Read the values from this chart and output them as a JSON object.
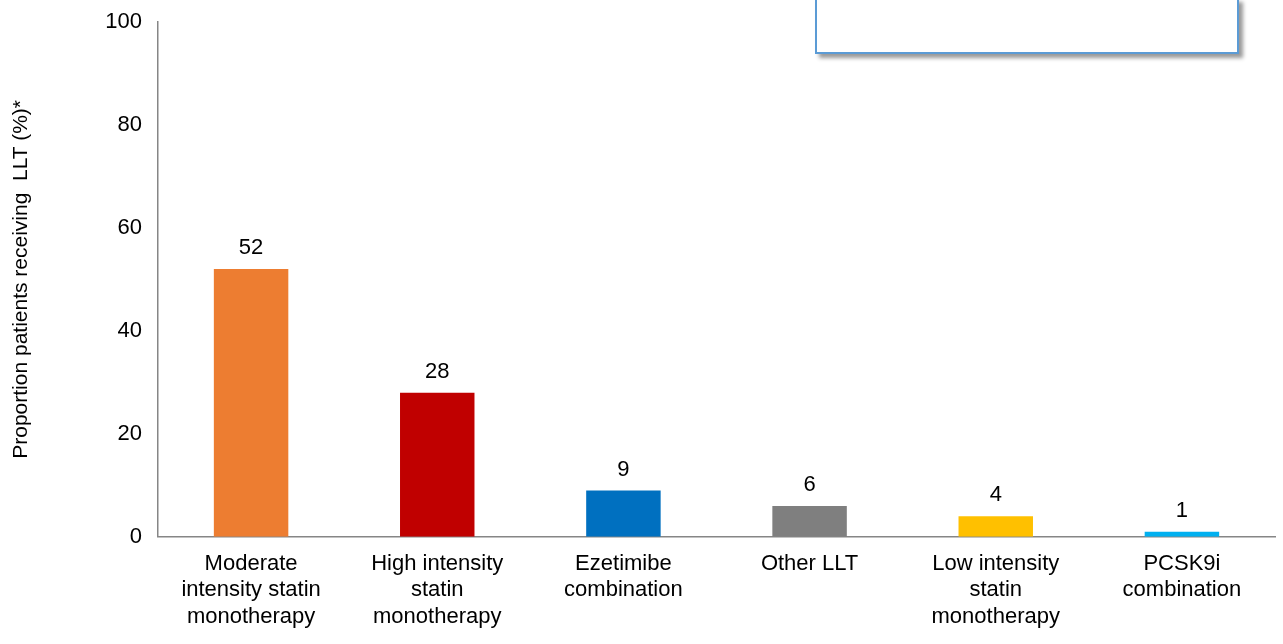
{
  "chart_data": {
    "type": "bar",
    "ylabel": "Proportion patients receiving  LLT (%)*",
    "categories": [
      "Moderate intensity statin monotherapy",
      "High intensity statin monotherapy",
      "Ezetimibe combination",
      "Other LLT",
      "Low intensity statin monotherapy",
      "PCSK9i combination"
    ],
    "values": [
      52,
      28,
      9,
      6,
      4,
      1
    ],
    "colors": [
      "#ed7d31",
      "#c00000",
      "#0070c0",
      "#7f7f7f",
      "#ffc000",
      "#00b0f0"
    ],
    "ylim": [
      0,
      100
    ],
    "yticks": [
      0,
      20,
      40,
      60,
      80,
      100
    ],
    "grid": false,
    "legend": false,
    "data_labels": true
  }
}
